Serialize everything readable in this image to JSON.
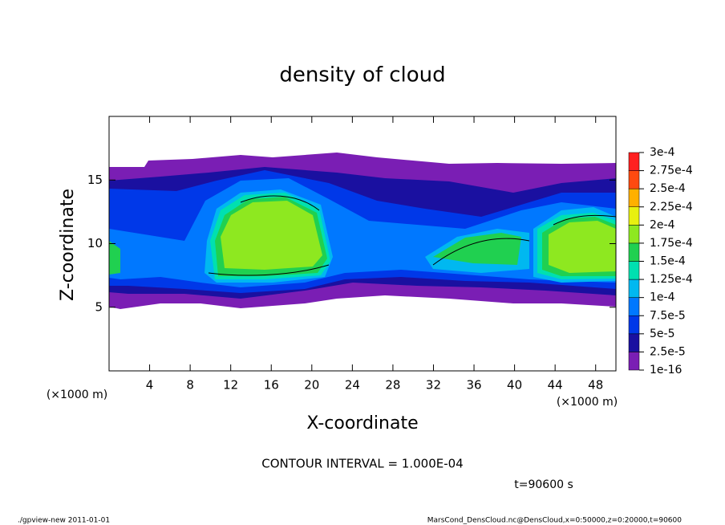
{
  "chart_data": {
    "type": "contour",
    "title": "density of cloud",
    "x_label": "X-coordinate",
    "y_label": "Z-coordinate",
    "x_unit": "(×1000 m)",
    "y_unit": "(×1000 m)",
    "xlim": [
      0,
      50
    ],
    "xticks": [
      4,
      8,
      12,
      16,
      20,
      24,
      28,
      32,
      36,
      40,
      44,
      48
    ],
    "ylim": [
      0,
      20
    ],
    "yticks": [
      5,
      10,
      15
    ],
    "colorbar": {
      "levels": [
        {
          "value": 1e-16,
          "label": "1e-16"
        },
        {
          "value": 2.5e-05,
          "label": "2.5e-5"
        },
        {
          "value": 5e-05,
          "label": "5e-5"
        },
        {
          "value": 7.5e-05,
          "label": "7.5e-5"
        },
        {
          "value": 0.0001,
          "label": "1e-4"
        },
        {
          "value": 0.000125,
          "label": "1.25e-4"
        },
        {
          "value": 0.00015,
          "label": "1.5e-4"
        },
        {
          "value": 0.000175,
          "label": "1.75e-4"
        },
        {
          "value": 0.0002,
          "label": "2e-4"
        },
        {
          "value": 0.000225,
          "label": "2.25e-4"
        },
        {
          "value": 0.00025,
          "label": "2.5e-4"
        },
        {
          "value": 0.000275,
          "label": "2.75e-4"
        },
        {
          "value": 0.0003,
          "label": "3e-4"
        }
      ],
      "colors": [
        "#7a1eb4",
        "#1a10a0",
        "#0038e8",
        "#0078ff",
        "#00b8f0",
        "#00e0b0",
        "#20d050",
        "#8ee820",
        "#e8f010",
        "#ffb000",
        "#ff4a10",
        "#ff2020"
      ]
    },
    "annotation": "CONTOUR INTERVAL = 1.000E-04",
    "time_label": "t=90600 s",
    "footer_left": "./gpview-new   2011-01-01",
    "footer_right": "MarsCond_DensCloud.nc@DensCloud,x=0:50000,z=0:20000,t=90600"
  }
}
